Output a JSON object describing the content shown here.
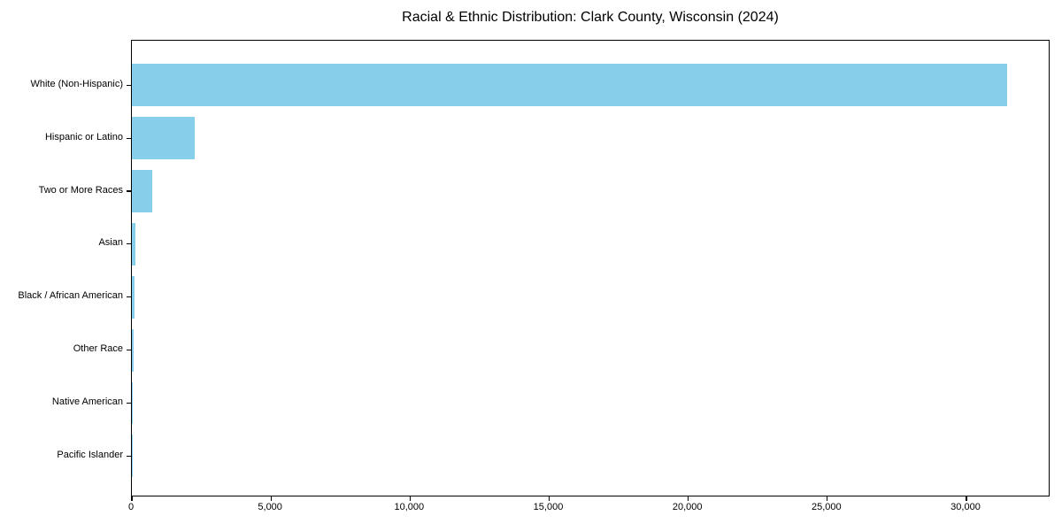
{
  "title": "Racial & Ethnic Distribution: Clark County, Wisconsin (2024)",
  "colors": {
    "bar": "#87CEEB",
    "axis": "#000000",
    "text": "#000000",
    "background": "#ffffff"
  },
  "chart_data": {
    "type": "bar",
    "orientation": "horizontal",
    "title": "Racial & Ethnic Distribution: Clark County, Wisconsin (2024)",
    "categories": [
      "White (Non-Hispanic)",
      "Hispanic or Latino",
      "Two or More Races",
      "Asian",
      "Black / African American",
      "Other Race",
      "Native American",
      "Pacific Islander"
    ],
    "values": [
      31450,
      2260,
      720,
      130,
      100,
      65,
      30,
      10
    ],
    "xlabel": "",
    "ylabel": "",
    "xlim": [
      0,
      33022
    ],
    "xticks": [
      0,
      5000,
      10000,
      15000,
      20000,
      25000,
      30000
    ],
    "xtick_labels": [
      "0",
      "5,000",
      "10,000",
      "15,000",
      "20,000",
      "25,000",
      "30,000"
    ],
    "grid": false,
    "legend": null,
    "bar_color": "#87CEEB"
  }
}
